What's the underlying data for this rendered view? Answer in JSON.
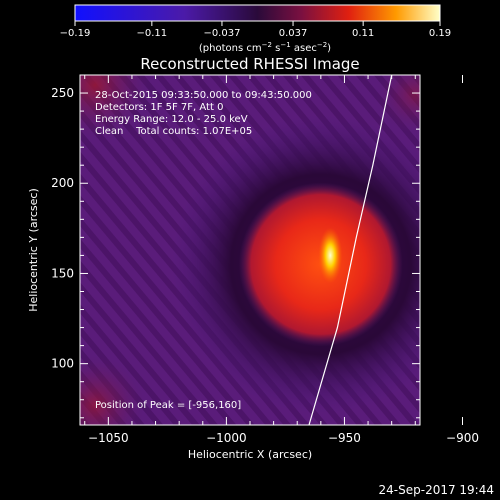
{
  "chart_data": {
    "type": "heatmap",
    "title": "Reconstructed RHESSI Image",
    "xlabel": "Heliocentric X (arcsec)",
    "ylabel": "Heliocentric Y (arcsec)",
    "xlim": [
      -1062,
      -918
    ],
    "ylim": [
      66,
      260
    ],
    "xticks": [
      -1050,
      -1000,
      -950,
      -900
    ],
    "xtick_labels": [
      "−1050",
      "−1000",
      "−950",
      "−900"
    ],
    "yticks": [
      100,
      150,
      200,
      250
    ],
    "ytick_labels": [
      "100",
      "150",
      "200",
      "250"
    ],
    "colorbar": {
      "range": [
        -0.19,
        0.19
      ],
      "ticks": [
        -0.19,
        -0.11,
        -0.037,
        0.037,
        0.11,
        0.19
      ],
      "tick_labels": [
        "−0.19",
        "−0.11",
        "−0.037",
        "0.037",
        "0.11",
        "0.19"
      ],
      "label_parts": [
        "(photons cm",
        "−2",
        " s",
        "−1",
        " asec",
        "−2",
        ")"
      ]
    },
    "annotations": [
      "28-Oct-2015 09:33:50.000 to 09:43:50.000",
      "Detectors: 1F 5F 7F, Att 0",
      "Energy Range: 12.0 - 25.0 keV",
      "Clean    Total counts: 1.07E+05"
    ],
    "peak_label": "Position of Peak = [-956,160]",
    "peak": [
      -956,
      160
    ],
    "source_center": [
      -960,
      155
    ],
    "limb_curve": [
      [
        -965,
        66
      ],
      [
        -953,
        120
      ],
      [
        -945,
        170
      ],
      [
        -938,
        210
      ],
      [
        -930,
        260
      ]
    ],
    "timestamp": "24-Sep-2017 19:44"
  }
}
